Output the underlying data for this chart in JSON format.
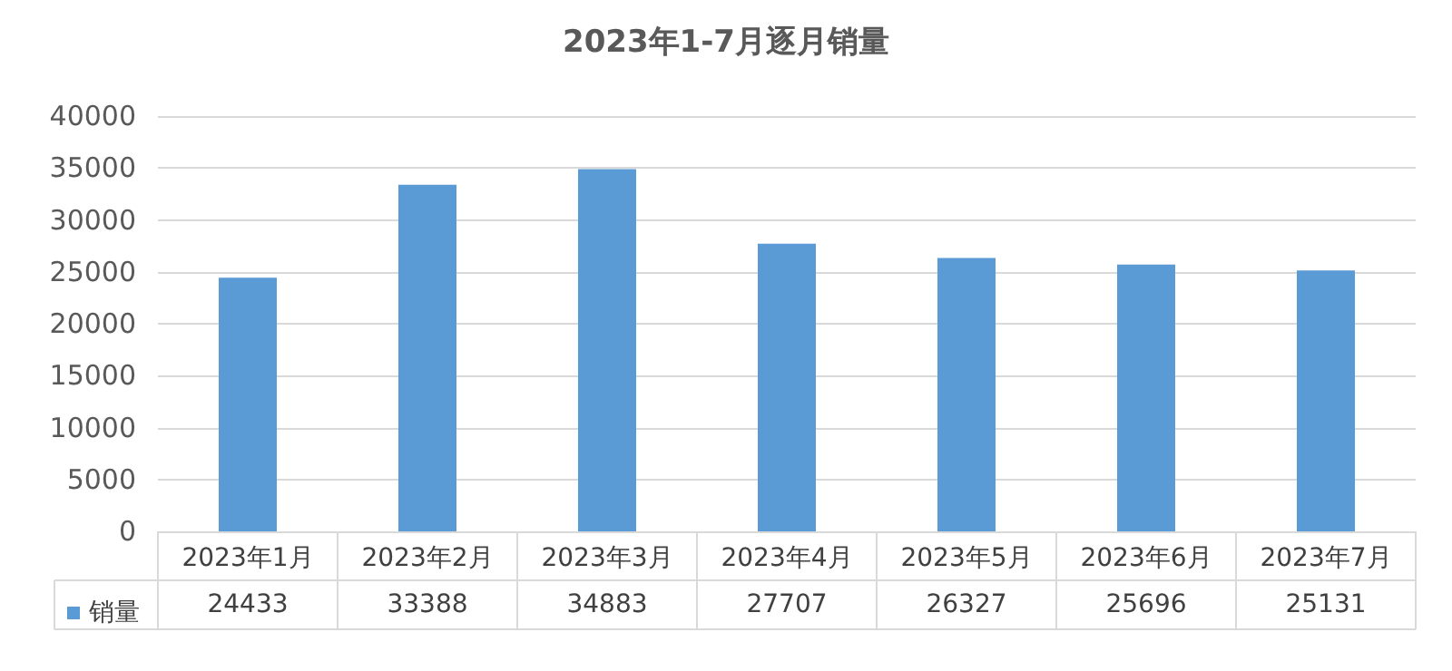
{
  "chart_data": {
    "type": "bar",
    "title": "2023年1-7月逐月销量",
    "categories": [
      "2023年1月",
      "2023年2月",
      "2023年3月",
      "2023年4月",
      "2023年5月",
      "2023年6月",
      "2023年7月"
    ],
    "series": [
      {
        "name": "销量",
        "color": "#5b9bd5",
        "values": [
          24433,
          33388,
          34883,
          27707,
          26327,
          25696,
          25131
        ]
      }
    ],
    "ylim": [
      0,
      40000
    ],
    "yticks": [
      0,
      5000,
      10000,
      15000,
      20000,
      25000,
      30000,
      35000,
      40000
    ],
    "grid": "y",
    "legend": "bottom left",
    "data_labels": true
  }
}
